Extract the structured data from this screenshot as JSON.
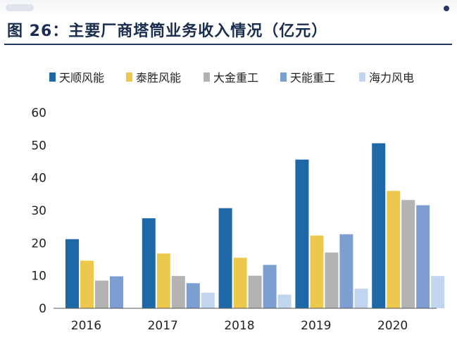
{
  "figure": {
    "title": "图 26：主要厂商塔筒业务收入情况（亿元）"
  },
  "chart_data": {
    "type": "bar",
    "categories": [
      "2016",
      "2017",
      "2018",
      "2019",
      "2020"
    ],
    "series": [
      {
        "name": "天顺风能",
        "color": "#1f68a8",
        "values": [
          21.2,
          27.6,
          30.7,
          45.6,
          50.6
        ]
      },
      {
        "name": "泰胜风能",
        "color": "#ecc94d",
        "values": [
          14.6,
          16.8,
          15.5,
          22.3,
          36.0
        ]
      },
      {
        "name": "大金重工",
        "color": "#b3b3b3",
        "values": [
          8.5,
          9.9,
          10.0,
          17.1,
          33.2
        ]
      },
      {
        "name": "天能重工",
        "color": "#7c9ed1",
        "values": [
          9.8,
          7.7,
          13.3,
          22.7,
          31.6
        ]
      },
      {
        "name": "海力风电",
        "color": "#c2d5ee",
        "values": [
          null,
          4.8,
          4.2,
          6.0,
          9.9
        ]
      }
    ],
    "ylim": [
      0,
      60
    ],
    "yticks": [
      0,
      10,
      20,
      30,
      40,
      50,
      60
    ],
    "xlabel": "",
    "ylabel": "",
    "grid": false,
    "legend": "top"
  }
}
